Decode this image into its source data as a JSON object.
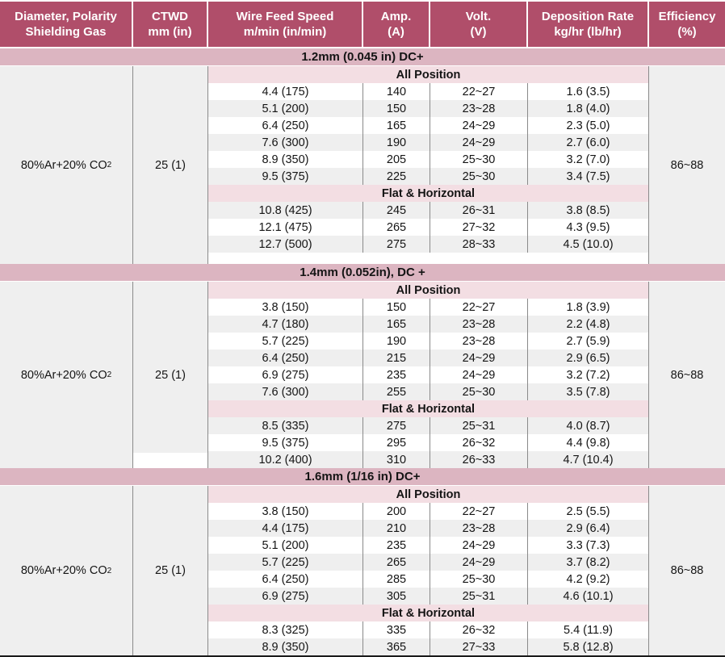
{
  "title": "Welding parameters table",
  "colors": {
    "header_bg": "#b04e6a",
    "section_band_bg": "#dcb5c1",
    "subsection_band_bg": "#f3dee3",
    "shaded_row_bg": "#efefef",
    "grid_line": "#8a8a8a",
    "header_text": "#ffffff",
    "body_text": "#141414",
    "bottom_border": "#1a1a1a"
  },
  "header": {
    "columns": [
      {
        "line1": "Diameter, Polarity",
        "line2": "Shielding Gas"
      },
      {
        "line1": "CTWD",
        "line2": "mm (in)"
      },
      {
        "line1": "Wire Feed Speed",
        "line2": "m/min (in/min)"
      },
      {
        "line1": "Amp.",
        "line2": "(A)"
      },
      {
        "line1": "Volt.",
        "line2": "(V)"
      },
      {
        "line1": "Deposition Rate",
        "line2": "kg/hr (lb/hr)"
      },
      {
        "line1": "Efficiency",
        "line2": "(%)"
      }
    ]
  },
  "sections": [
    {
      "title": "1.2mm (0.045 in) DC+",
      "shielding_gas_main": "80%Ar+20% CO",
      "shielding_gas_sub": "2",
      "ctwd": "25 (1)",
      "efficiency": "86~88",
      "trailing_spacer": true,
      "ctwd_cut_bottom": false,
      "groups": [
        {
          "label": "All Position",
          "stripe_start": "white",
          "rows": [
            [
              "4.4 (175)",
              "140",
              "22~27",
              "1.6 (3.5)"
            ],
            [
              "5.1 (200)",
              "150",
              "23~28",
              "1.8 (4.0)"
            ],
            [
              "6.4 (250)",
              "165",
              "24~29",
              "2.3 (5.0)"
            ],
            [
              "7.6 (300)",
              "190",
              "24~29",
              "2.7 (6.0)"
            ],
            [
              "8.9 (350)",
              "205",
              "25~30",
              "3.2 (7.0)"
            ],
            [
              "9.5 (375)",
              "225",
              "25~30",
              "3.4 (7.5)"
            ]
          ]
        },
        {
          "label": "Flat & Horizontal",
          "stripe_start": "shaded",
          "rows": [
            [
              "10.8 (425)",
              "245",
              "26~31",
              "3.8 (8.5)"
            ],
            [
              "12.1 (475)",
              "265",
              "27~32",
              "4.3 (9.5)"
            ],
            [
              "12.7 (500)",
              "275",
              "28~33",
              "4.5 (10.0)"
            ]
          ]
        }
      ]
    },
    {
      "title": "1.4mm (0.052in), DC +",
      "shielding_gas_main": "80%Ar+20% CO",
      "shielding_gas_sub": "2",
      "ctwd": "25 (1)",
      "efficiency": "86~88",
      "trailing_spacer": false,
      "ctwd_cut_bottom": true,
      "groups": [
        {
          "label": "All Position",
          "stripe_start": "white",
          "rows": [
            [
              "3.8 (150)",
              "150",
              "22~27",
              "1.8 (3.9)"
            ],
            [
              "4.7 (180)",
              "165",
              "23~28",
              "2.2 (4.8)"
            ],
            [
              "5.7 (225)",
              "190",
              "23~28",
              "2.7 (5.9)"
            ],
            [
              "6.4 (250)",
              "215",
              "24~29",
              "2.9 (6.5)"
            ],
            [
              "6.9 (275)",
              "235",
              "24~29",
              "3.2 (7.2)"
            ],
            [
              "7.6 (300)",
              "255",
              "25~30",
              "3.5 (7.8)"
            ]
          ]
        },
        {
          "label": "Flat & Horizontal",
          "stripe_start": "shaded",
          "rows": [
            [
              "8.5 (335)",
              "275",
              "25~31",
              "4.0 (8.7)"
            ],
            [
              "9.5 (375)",
              "295",
              "26~32",
              "4.4 (9.8)"
            ],
            [
              "10.2 (400)",
              "310",
              "26~33",
              "4.7 (10.4)"
            ]
          ]
        }
      ]
    },
    {
      "title": "1.6mm (1/16 in) DC+",
      "shielding_gas_main": "80%Ar+20% CO",
      "shielding_gas_sub": "2",
      "ctwd": "25 (1)",
      "efficiency": "86~88",
      "trailing_spacer": false,
      "ctwd_cut_bottom": false,
      "groups": [
        {
          "label": "All Position",
          "stripe_start": "white",
          "rows": [
            [
              "3.8 (150)",
              "200",
              "22~27",
              "2.5 (5.5)"
            ],
            [
              "4.4 (175)",
              "210",
              "23~28",
              "2.9 (6.4)"
            ],
            [
              "5.1 (200)",
              "235",
              "24~29",
              "3.3 (7.3)"
            ],
            [
              "5.7 (225)",
              "265",
              "24~29",
              "3.7 (8.2)"
            ],
            [
              "6.4 (250)",
              "285",
              "25~30",
              "4.2 (9.2)"
            ],
            [
              "6.9 (275)",
              "305",
              "25~31",
              "4.6 (10.1)"
            ]
          ]
        },
        {
          "label": "Flat & Horizontal",
          "stripe_start": "white",
          "rows": [
            [
              "8.3 (325)",
              "335",
              "26~32",
              "5.4 (11.9)"
            ],
            [
              "8.9 (350)",
              "365",
              "27~33",
              "5.8 (12.8)"
            ]
          ]
        }
      ]
    }
  ]
}
